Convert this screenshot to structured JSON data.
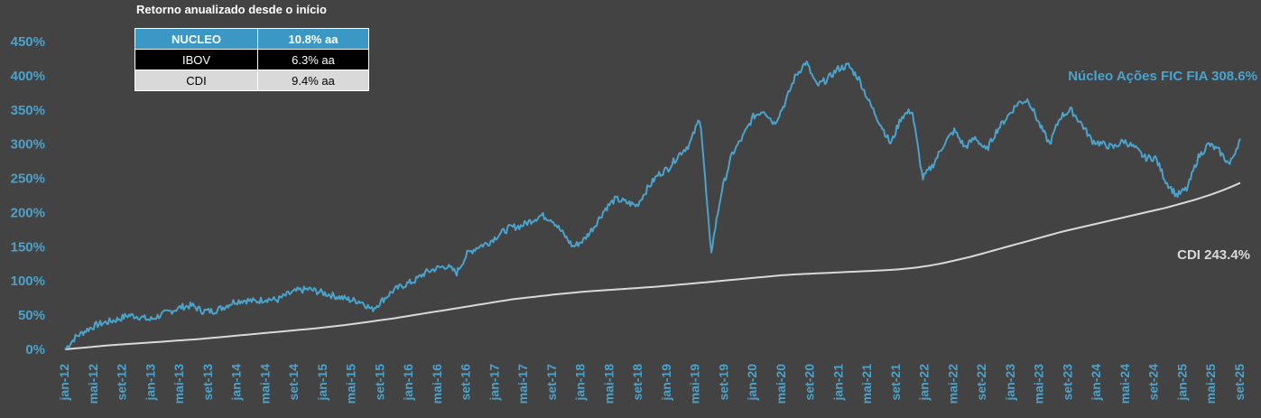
{
  "returns_table": {
    "title": "Retorno anualizado desde o início",
    "rows": [
      {
        "name": "NUCLEO",
        "value": "10.8% aa",
        "bg": "#3b97c3",
        "fg": "#ffffff",
        "bold": true
      },
      {
        "name": "IBOV",
        "value": "6.3% aa",
        "bg": "#000000",
        "fg": "#ffffff",
        "bold": false
      },
      {
        "name": "CDI",
        "value": "9.4% aa",
        "bg": "#d9d9d9",
        "fg": "#000000",
        "bold": false
      }
    ]
  },
  "chart_data": {
    "type": "line",
    "title": "",
    "xlabel": "",
    "ylabel": "",
    "ylim": [
      0,
      450
    ],
    "yticks": [
      "0%",
      "50%",
      "100%",
      "150%",
      "200%",
      "250%",
      "300%",
      "350%",
      "400%",
      "450%"
    ],
    "grid": false,
    "x_ticks": [
      "jan-12",
      "mai-12",
      "set-12",
      "jan-13",
      "mai-13",
      "set-13",
      "jan-14",
      "mai-14",
      "set-14",
      "jan-15",
      "mai-15",
      "set-15",
      "jan-16",
      "mai-16",
      "set-16",
      "jan-17",
      "mai-17",
      "set-17",
      "jan-18",
      "mai-18",
      "set-18",
      "jan-19",
      "mai-19",
      "set-19",
      "jan-20",
      "mai-20",
      "set-20",
      "jan-21",
      "mai-21",
      "set-21",
      "jan-22",
      "mai-22",
      "set-22",
      "jan-23",
      "mai-23",
      "set-23",
      "jan-24",
      "mai-24",
      "set-24",
      "jan-25",
      "mai-25",
      "set-25"
    ],
    "series": [
      {
        "name": "Núcleo Ações FIC FIA",
        "label": "Núcleo Ações FIC FIA  308.6%",
        "color": "#4aa3cc",
        "values": [
          0,
          18,
          28,
          36,
          40,
          44,
          50,
          48,
          43,
          50,
          56,
          62,
          64,
          56,
          56,
          62,
          70,
          72,
          70,
          74,
          72,
          80,
          86,
          88,
          84,
          80,
          76,
          72,
          70,
          58,
          72,
          86,
          94,
          100,
          112,
          118,
          122,
          112,
          140,
          150,
          156,
          168,
          178,
          180,
          188,
          196,
          190,
          170,
          150,
          160,
          180,
          205,
          220,
          215,
          210,
          235,
          255,
          265,
          285,
          300,
          340,
          140,
          230,
          285,
          310,
          340,
          350,
          330,
          360,
          400,
          420,
          385,
          395,
          410,
          415,
          395,
          360,
          330,
          300,
          340,
          350,
          250,
          270,
          300,
          320,
          295,
          310,
          290,
          320,
          340,
          360,
          365,
          330,
          300,
          340,
          350,
          330,
          305,
          300,
          295,
          305,
          295,
          280,
          280,
          245,
          225,
          235,
          280,
          300,
          290,
          270,
          308
        ]
      },
      {
        "name": "CDI",
        "label": "CDI  243.4%",
        "color": "#d9d9d9",
        "values": [
          0,
          2,
          4,
          6,
          7.5,
          9,
          10.5,
          12,
          13.5,
          15,
          17,
          19,
          21,
          23,
          25,
          27,
          29,
          31,
          33.5,
          36,
          39,
          42,
          45,
          48.5,
          52,
          55.5,
          59,
          62.5,
          66,
          69.5,
          73,
          75.5,
          78,
          80.5,
          82.5,
          84.5,
          86,
          87.5,
          89,
          90.5,
          92,
          94,
          96,
          98,
          100,
          102,
          104,
          106,
          108,
          109.5,
          110.5,
          111.5,
          112.5,
          113.5,
          114.5,
          115.5,
          117,
          119,
          122,
          126,
          131,
          136,
          142,
          148,
          154,
          160,
          166,
          172,
          177,
          182,
          187,
          192,
          197,
          202,
          207,
          213,
          219,
          226,
          234,
          243.4
        ]
      }
    ]
  }
}
